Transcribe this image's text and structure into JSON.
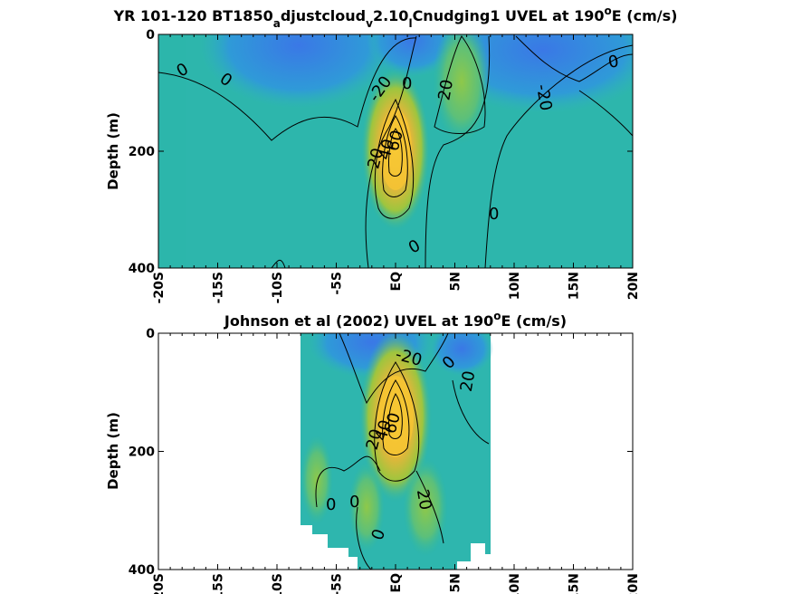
{
  "chart_data": [
    {
      "type": "heatmap",
      "title": {
        "part1": "YR 101-120 BT1850",
        "sub1": "a",
        "part2": "djustcloud",
        "sub2": "v",
        "part3": "2.10",
        "sub3": "l",
        "part4": "Cnudging1 UVEL at 190",
        "sup": "o",
        "part5": "E (cm/s)"
      },
      "ylabel": "Depth (m)",
      "xlim": [
        -20,
        20
      ],
      "ylim": [
        400,
        0
      ],
      "x_ticks": [
        -20,
        -15,
        -10,
        -5,
        0,
        5,
        10,
        15,
        20
      ],
      "x_tick_labels": [
        "-20S",
        "-15S",
        "-10S",
        "-5S",
        "EQ",
        "5N",
        "10N",
        "15N",
        "20N"
      ],
      "y_ticks": [
        0,
        200,
        400
      ],
      "y_tick_labels": [
        "0",
        "200",
        "400"
      ],
      "contour_labels": [
        "0",
        "0",
        "-20",
        "0",
        "20",
        "-20",
        "0",
        "20",
        "40",
        "60",
        "0",
        "0"
      ],
      "features": {
        "undercurrent_core": {
          "lat": 0,
          "depth": 180,
          "max_cm_s": 60
        },
        "westward_flow_min_cm_s": -30,
        "eastward_jet_lat": 5
      }
    },
    {
      "type": "heatmap",
      "title": {
        "part1": "Johnson et al (2002) UVEL at 190",
        "sup": "o",
        "part2": "E (cm/s)"
      },
      "ylabel": "Depth (m)",
      "xlim": [
        -20,
        20
      ],
      "ylim": [
        400,
        0
      ],
      "data_x_range": [
        -8,
        8
      ],
      "x_ticks": [
        -20,
        -15,
        -10,
        -5,
        0,
        5,
        10,
        15,
        20
      ],
      "x_tick_labels": [
        "-20S",
        "-15S",
        "-10S",
        "-5S",
        "EQ",
        "5N",
        "10N",
        "15N",
        "20N"
      ],
      "y_ticks": [
        0,
        200,
        400
      ],
      "y_tick_labels": [
        "0",
        "200",
        "400"
      ],
      "contour_labels": [
        "-20",
        "0",
        "20",
        "20",
        "40",
        "60",
        "0",
        "0",
        "20",
        "0"
      ],
      "features": {
        "undercurrent_core": {
          "lat": 0,
          "depth": 160,
          "max_cm_s": 60
        }
      }
    }
  ]
}
